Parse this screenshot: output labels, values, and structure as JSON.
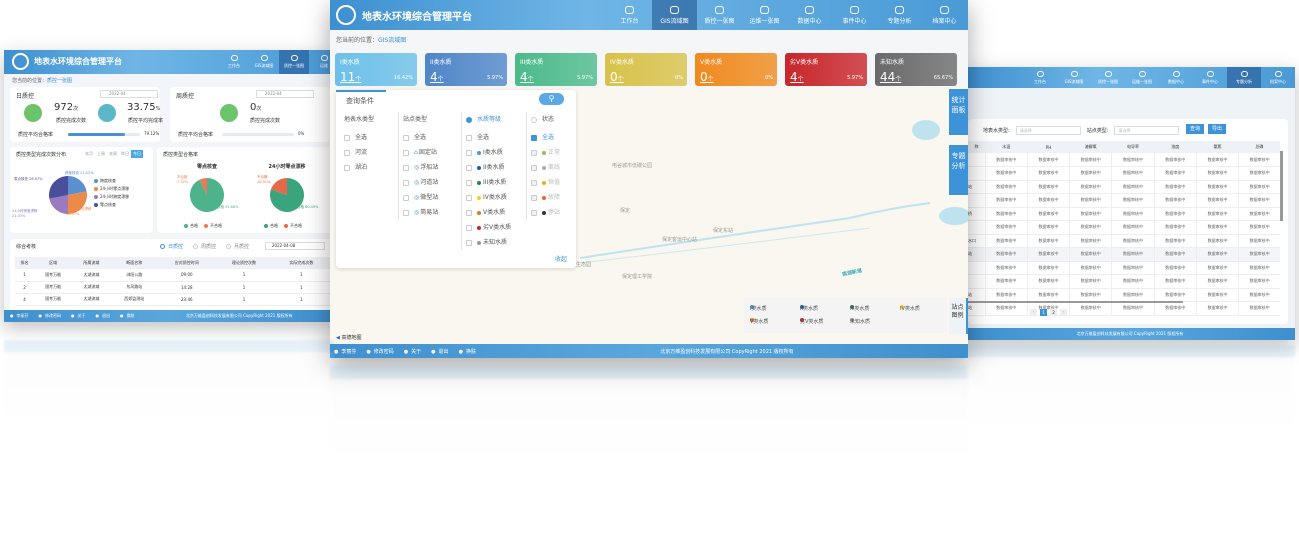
{
  "app_title": "地表水环境综合管理平台",
  "copyright": "北京万维盈创科技发展有限公司  CopyRight  2021 版权所有",
  "footer": {
    "user": "李丽芬",
    "change_password": "修改密码",
    "about": "关于",
    "logout": "退出",
    "skin": "换肤"
  },
  "center": {
    "nav": [
      {
        "label": "工作台",
        "icon": "monitor-icon"
      },
      {
        "label": "GIS流域图",
        "icon": "atom-icon",
        "active": true
      },
      {
        "label": "质控一张图",
        "icon": "shield-icon"
      },
      {
        "label": "运维一张图",
        "icon": "database-icon"
      },
      {
        "label": "数据中心",
        "icon": "atom-icon"
      },
      {
        "label": "事件中心",
        "icon": "document-icon"
      },
      {
        "label": "专题分析",
        "icon": "layers-icon"
      },
      {
        "label": "档案中心",
        "icon": "database-icon"
      }
    ],
    "breadcrumb_label": "您当前的位置：",
    "breadcrumb_current": "GIS流域图",
    "water_cards": [
      {
        "label": "I类水质",
        "count": "11",
        "unit": "个",
        "percent": "16.42%",
        "color": "#6cc0e8"
      },
      {
        "label": "II类水质",
        "count": "4",
        "unit": "个",
        "percent": "5.97%",
        "color": "#4f86c8"
      },
      {
        "label": "III类水质",
        "count": "4",
        "unit": "个",
        "percent": "5.97%",
        "color": "#4cba8a"
      },
      {
        "label": "IV类水质",
        "count": "0",
        "unit": "个",
        "percent": "0%",
        "color": "#d8c24a"
      },
      {
        "label": "V类水质",
        "count": "0",
        "unit": "个",
        "percent": "0%",
        "color": "#f08a1e"
      },
      {
        "label": "劣V类水质",
        "count": "4",
        "unit": "个",
        "percent": "5.97%",
        "color": "#c8262a"
      },
      {
        "label": "未知水质",
        "count": "44",
        "unit": "个",
        "percent": "65.67%",
        "color": "#6a6a6a"
      }
    ],
    "query": {
      "title": "查询条件",
      "collapse": "收起",
      "surface_type": {
        "title": "地表水类型",
        "items": [
          "全选",
          "河流",
          "湖泊"
        ]
      },
      "site_type": {
        "title": "站点类型",
        "items": [
          "全选",
          "固定站",
          "浮船站",
          "河道站",
          "微型站",
          "简易站"
        ]
      },
      "quality": {
        "title": "水质等级",
        "items": [
          "全选",
          "I类水质",
          "II类水质",
          "III类水质",
          "IV类水质",
          "V类水质",
          "劣V类水质",
          "未知水质"
        ],
        "colors": [
          "",
          "#4a9ad6",
          "#1f5fa8",
          "#2f7d4f",
          "#f0d020",
          "#e07a1a",
          "#c8262a",
          "#999999"
        ]
      },
      "status": {
        "title": "状态",
        "items": [
          "全选",
          "正常",
          "离线",
          "恒值",
          "故障",
          "停站"
        ],
        "colors": [
          "",
          "#8cc63f",
          "#aaaaaa",
          "#f5a623",
          "#f06030",
          "#333333"
        ]
      }
    },
    "map_labels": [
      "电谷城市低碳公园",
      "保定",
      "保定东站",
      "保定客运中心站",
      "保定理工学院",
      "生态园",
      "南湖新道"
    ],
    "side_buttons": [
      "统计面板",
      "专题分析"
    ],
    "legend_button": "站点图例",
    "legend": [
      {
        "label": "I类水质",
        "color": "#4a9ad6"
      },
      {
        "label": "II类水质",
        "color": "#1f5fa8"
      },
      {
        "label": "III类水质",
        "color": "#2f7d4f"
      },
      {
        "label": "IV类水质",
        "color": "#f0d020"
      },
      {
        "label": "V类水质",
        "color": "#e07a1a"
      },
      {
        "label": "劣V类水质",
        "color": "#c8262a"
      },
      {
        "label": "未知水质",
        "color": "#999999"
      }
    ],
    "map_provider": "高德地图"
  },
  "left": {
    "nav": [
      "工作台",
      "GIS流域图",
      "质控一张图",
      "运维"
    ],
    "breadcrumb_label": "您当前的位置：",
    "breadcrumb_current": "质控一张图",
    "daily": {
      "title": "日质控",
      "date": "2022-04",
      "count": "972",
      "count_unit": "次",
      "count_label": "质控完成次数",
      "rate": "33.75",
      "rate_unit": "%",
      "rate_label": "质控平均完成率",
      "pass_label": "质控平均合格率",
      "pass_value": "79.12%",
      "pass_fraction": 0.79
    },
    "weekly": {
      "title": "周质控",
      "date": "2022-04",
      "count": "0",
      "count_unit": "次",
      "count_label": "质控完成次数",
      "pass_label": "质控平均合格率",
      "pass_value": "0%",
      "pass_fraction": 0
    },
    "dist": {
      "title": "质控类型完成次数分布",
      "tabs": [
        "本月",
        "上周",
        "本周",
        "昨日",
        "今日"
      ],
      "active_tab": "今日",
      "chart_data": {
        "type": "pie",
        "slices": [
          {
            "label": "跨度核查",
            "value": 21.03,
            "color": "#5b8fd0"
          },
          {
            "label": "24小时零点漂移",
            "value": 26.97,
            "color": "#ec8a4a"
          },
          {
            "label": "24小时跨度漂移",
            "value": 21.03,
            "color": "#9a7bc0"
          },
          {
            "label": "零点核查",
            "value": 26.97,
            "color": "#4a4f9c"
          }
        ]
      },
      "slice_labels": [
        "跨度核查 21.03%",
        "24小时零点漂移 26.97%",
        "24小时跨度漂移 21.03%",
        "零点核查 26.97%"
      ]
    },
    "pass": {
      "title": "质控类型合格率",
      "charts": [
        {
          "title": "零点核查",
          "chart_data": {
            "type": "pie",
            "slices": [
              {
                "label": "合格",
                "value": 92.68,
                "color": "#4db38a"
              },
              {
                "label": "不合格",
                "value": 7.32,
                "color": "#ec7a5a"
              }
            ]
          },
          "pass_label": "合格 92.68%",
          "fail_label": "不合格 7.32%"
        },
        {
          "title": "24小时零点漂移",
          "chart_data": {
            "type": "pie",
            "slices": [
              {
                "label": "合格",
                "value": 80.49,
                "color": "#3aa57c"
              },
              {
                "label": "不合格",
                "value": 19.51,
                "color": "#e4684a"
              }
            ]
          },
          "pass_label": "合格 80.49%",
          "fail_label": "不合格 19.51%"
        }
      ],
      "legend": [
        "合格",
        "不合格"
      ]
    },
    "assess": {
      "title": "综合考核",
      "radios": [
        "日质控",
        "周质控",
        "月质控"
      ],
      "date": "2022-04-08",
      "headers": [
        "排名",
        "区域",
        "所属流域",
        "断面名称",
        "应对质控时间",
        "理论质控次数",
        "实际完成次数"
      ],
      "rows": [
        [
          "1",
          "国考万能",
          "太湖流域",
          "浏阳公路",
          "09:00",
          "1",
          "1"
        ],
        [
          "2",
          "国考万能",
          "太湖流域",
          "东风路站",
          "14:28",
          "1",
          "1"
        ],
        [
          "4",
          "国考万能",
          "太湖流域",
          "西郊监测站",
          "23:46",
          "1",
          "1"
        ]
      ]
    }
  },
  "right": {
    "nav": [
      "工作台",
      "GIS流域图",
      "质控一张图",
      "运维一张图",
      "数据中心",
      "事件中心",
      "专题分析",
      "档案中心"
    ],
    "active": "专题分析",
    "filters": [
      {
        "label": "地表水类型:",
        "placeholder": "请选择"
      },
      {
        "label": "站点类型:",
        "placeholder": "请选择"
      }
    ],
    "search_button": "查询",
    "export_button": "导出",
    "headers": [
      "称",
      "水温",
      "PH",
      "溶解氧",
      "电导率",
      "浊度",
      "氨氮",
      "总磷"
    ],
    "first_col": [
      "",
      "",
      "站",
      "",
      "桥",
      "",
      "水口",
      "站",
      "",
      "",
      "站",
      "站"
    ],
    "cell": "数据审核中",
    "pages": [
      "1",
      "2"
    ],
    "current_page": "1"
  }
}
